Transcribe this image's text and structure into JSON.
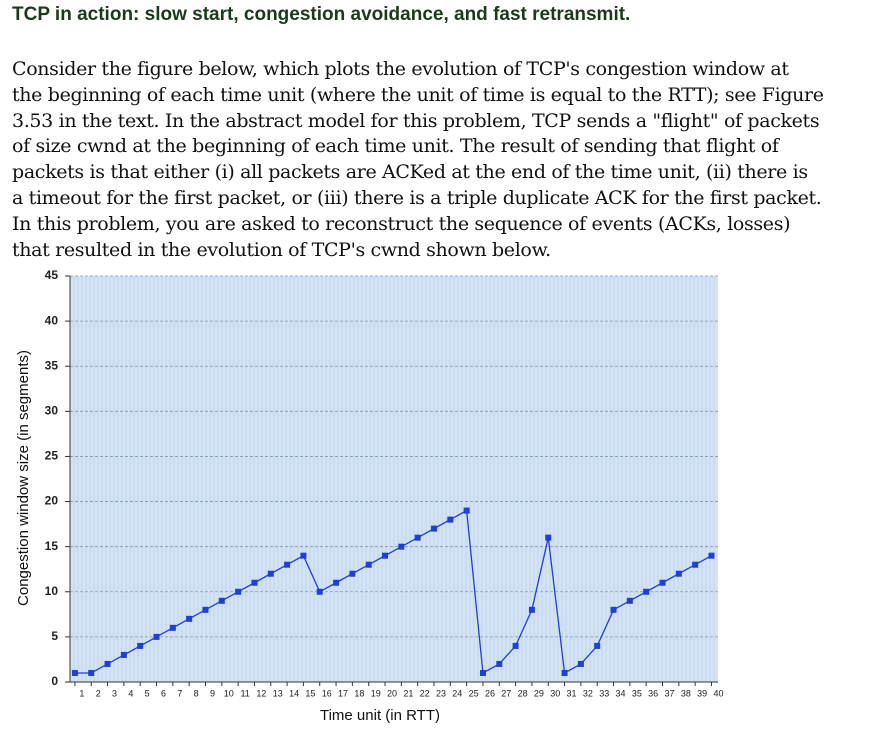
{
  "header": {
    "title": "TCP in action: slow start, congestion avoidance, and fast retransmit."
  },
  "paragraph_lines": [
    "Consider the figure below, which plots the evolution of TCP's congestion window at",
    "the beginning of each time unit (where the unit of time is equal to the RTT); see Figure",
    "3.53 in the text. In the abstract model for this problem, TCP sends a \"flight\" of packets",
    "of size cwnd at the beginning of each time unit. The result of sending that flight of",
    "packets is that either (i) all packets are ACKed at the end of the time unit, (ii) there is",
    "a timeout for the first packet, or (iii) there is a triple duplicate ACK for the first packet.",
    "In this problem, you are asked to reconstruct the sequence of events (ACKs, losses)",
    "that resulted in the evolution of TCP's cwnd shown below."
  ],
  "chart_data": {
    "type": "line",
    "x_label": "Time unit (in RTT)",
    "y_label": "Congestion window size (in segments)",
    "x": [
      1,
      2,
      3,
      4,
      5,
      6,
      7,
      8,
      9,
      10,
      11,
      12,
      13,
      14,
      15,
      16,
      17,
      18,
      19,
      20,
      21,
      22,
      23,
      24,
      25,
      26,
      27,
      28,
      29,
      30,
      31,
      32,
      33,
      34,
      35,
      36,
      37,
      38,
      39,
      40
    ],
    "series": [
      {
        "name": "cwnd",
        "color": "#1f3fd6",
        "values": [
          1,
          1,
          2,
          3,
          4,
          5,
          6,
          7,
          8,
          9,
          10,
          11,
          12,
          13,
          14,
          10,
          11,
          12,
          13,
          14,
          15,
          16,
          17,
          18,
          19,
          1,
          2,
          4,
          8,
          16,
          1,
          2,
          4,
          8,
          9,
          10,
          11,
          12,
          13,
          14
        ]
      }
    ],
    "xlim": [
      0.7,
      40.4
    ],
    "xticks": [
      1,
      2,
      3,
      4,
      5,
      6,
      7,
      8,
      9,
      10,
      11,
      12,
      13,
      14,
      15,
      16,
      17,
      18,
      19,
      20,
      21,
      22,
      23,
      24,
      25,
      26,
      27,
      28,
      29,
      30,
      31,
      32,
      33,
      34,
      35,
      36,
      37,
      38,
      39,
      40
    ],
    "ylim": [
      0,
      45
    ],
    "yticks": [
      0,
      5,
      10,
      15,
      20,
      25,
      30,
      35,
      40,
      45
    ],
    "grid": true
  }
}
